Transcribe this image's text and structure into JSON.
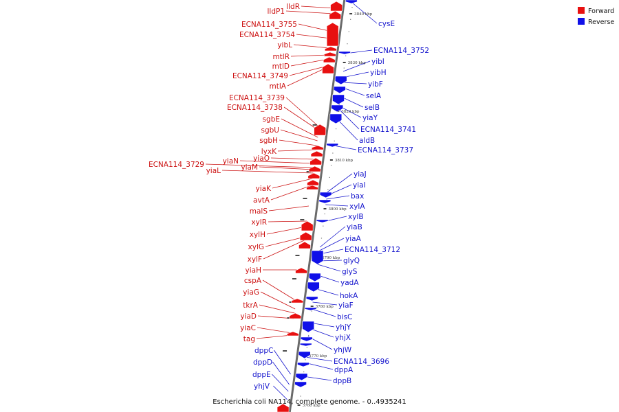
{
  "caption": "Escherichia coli NA114, complete genome. - 0..4935241",
  "legend": [
    {
      "label": "Forward",
      "color": "#e81010"
    },
    {
      "label": "Reverse",
      "color": "#1010e8"
    }
  ],
  "colors": {
    "forward": "#e81010",
    "reverse": "#1010e8",
    "forward_label": "#cc1111",
    "reverse_label": "#1111cc"
  },
  "ticks": [
    "3840 kbp",
    "3830 kbp",
    "3820 kbp",
    "3810 kbp",
    "3800 kbp",
    "3790 kbp",
    "3780 kbp",
    "3770 kbp",
    "3760 kbp"
  ],
  "forward_genes": [
    "lldR",
    "lldP1",
    "ECNA114_3755",
    "ECNA114_3754",
    "yibL",
    "mtlR",
    "mtlD",
    "ECNA114_3749",
    "mtlA",
    "ECNA114_3739",
    "ECNA114_3738",
    "sgbE",
    "sgbU",
    "sgbH",
    "lyxK",
    "yiaO",
    "yiaN",
    "ECNA114_3729",
    "yiaM",
    "yiaL",
    "yiaK",
    "avtA",
    "malS",
    "xylR",
    "xylH",
    "xylG",
    "xylF",
    "yiaH",
    "cspA",
    "yiaG",
    "tkrA",
    "yiaD",
    "yiaC",
    "tag"
  ],
  "reverse_genes": [
    "cysE",
    "ECNA114_3752",
    "yibI",
    "yibH",
    "yibF",
    "selA",
    "selB",
    "yiaY",
    "ECNA114_3741",
    "aldB",
    "ECNA114_3737",
    "yiaJ",
    "yiaI",
    "bax",
    "xylA",
    "xylB",
    "yiaB",
    "yiaA",
    "ECNA114_3712",
    "glyQ",
    "glyS",
    "yadA",
    "hokA",
    "yiaF",
    "bisC",
    "yhjY",
    "yhjX",
    "yhjW",
    "ECNA114_3696",
    "dppA",
    "dppB",
    "dppC",
    "dppD",
    "dppE",
    "yhjV"
  ]
}
